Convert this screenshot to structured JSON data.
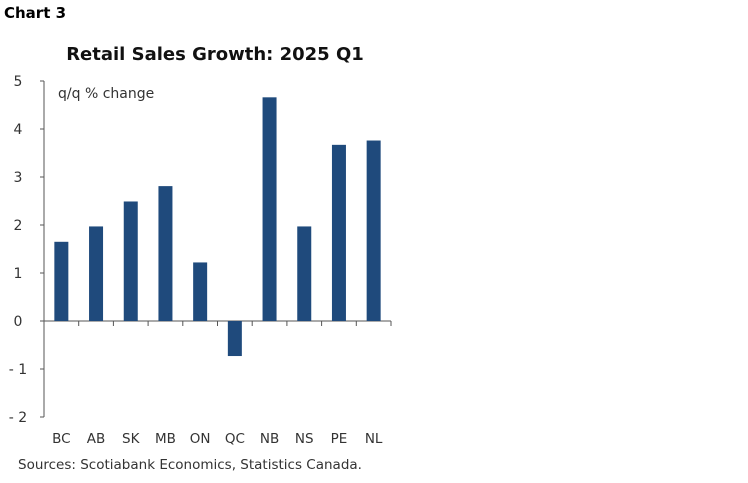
{
  "chart_data": {
    "type": "bar",
    "label": "Chart 3",
    "title": "Retail Sales Growth: 2025 Q1",
    "unit_label": "q/q % change",
    "categories": [
      "BC",
      "AB",
      "SK",
      "MB",
      "ON",
      "QC",
      "NB",
      "NS",
      "PE",
      "NL"
    ],
    "values": [
      1.65,
      1.97,
      2.49,
      2.81,
      1.22,
      -0.73,
      4.66,
      1.97,
      3.67,
      3.76
    ],
    "ylim": [
      -2,
      5
    ],
    "yticks": [
      "-2",
      "-1",
      "0",
      "1",
      "2",
      "3",
      "4",
      "5"
    ],
    "xlabel": "",
    "ylabel": "",
    "grid": false,
    "bar_color": "#1f4a7c",
    "source": "Sources: Scotiabank Economics, Statistics Canada."
  }
}
